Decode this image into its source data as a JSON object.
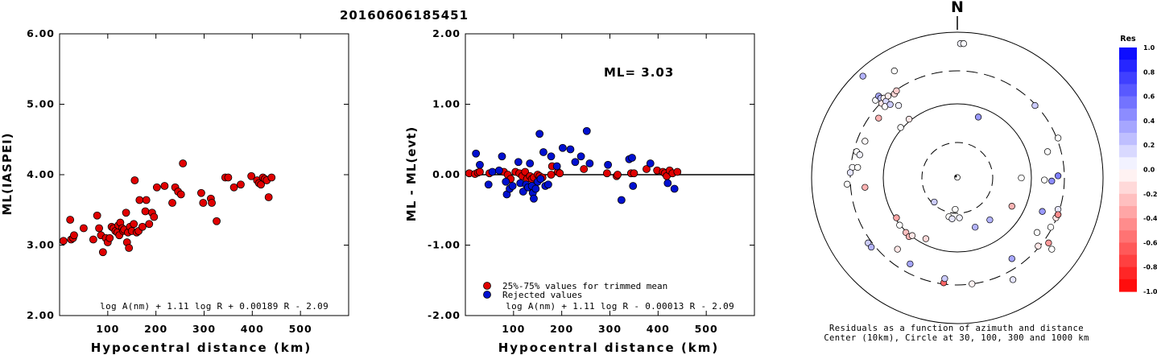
{
  "title": "20160606185451",
  "colors": {
    "red": "#e00000",
    "blue": "#0010d0",
    "axis": "#000000"
  },
  "chart_data": [
    {
      "type": "scatter",
      "name": "ml-vs-distance",
      "xlabel": "Hypocentral distance (km)",
      "ylabel": "ML(IASPEI)",
      "xlim": [
        0,
        600
      ],
      "ylim": [
        2.0,
        6.0
      ],
      "xticks": [
        "100",
        "200",
        "300",
        "400",
        "500"
      ],
      "yticks": [
        "2.00",
        "3.00",
        "4.00",
        "5.00",
        "6.00"
      ],
      "formula": "log A(nm) + 1.11 log R + 0.00189 R - 2.09",
      "points": [
        [
          8,
          3.06
        ],
        [
          22,
          3.36
        ],
        [
          24,
          3.08
        ],
        [
          28,
          3.1
        ],
        [
          30,
          3.14
        ],
        [
          50,
          3.24
        ],
        [
          70,
          3.08
        ],
        [
          78,
          3.42
        ],
        [
          82,
          3.24
        ],
        [
          86,
          3.14
        ],
        [
          90,
          2.9
        ],
        [
          96,
          3.1
        ],
        [
          100,
          3.04
        ],
        [
          104,
          3.1
        ],
        [
          108,
          3.26
        ],
        [
          112,
          3.24
        ],
        [
          116,
          3.2
        ],
        [
          120,
          3.18
        ],
        [
          122,
          3.28
        ],
        [
          124,
          3.14
        ],
        [
          126,
          3.32
        ],
        [
          130,
          3.24
        ],
        [
          132,
          3.2
        ],
        [
          134,
          3.22
        ],
        [
          138,
          3.46
        ],
        [
          140,
          3.04
        ],
        [
          142,
          3.18
        ],
        [
          144,
          2.96
        ],
        [
          146,
          3.26
        ],
        [
          150,
          3.2
        ],
        [
          154,
          3.3
        ],
        [
          156,
          3.92
        ],
        [
          160,
          3.18
        ],
        [
          164,
          3.2
        ],
        [
          166,
          3.64
        ],
        [
          172,
          3.26
        ],
        [
          178,
          3.48
        ],
        [
          180,
          3.64
        ],
        [
          186,
          3.3
        ],
        [
          192,
          3.46
        ],
        [
          196,
          3.4
        ],
        [
          202,
          3.82
        ],
        [
          218,
          3.84
        ],
        [
          234,
          3.6
        ],
        [
          240,
          3.82
        ],
        [
          246,
          3.76
        ],
        [
          252,
          3.72
        ],
        [
          256,
          4.16
        ],
        [
          294,
          3.74
        ],
        [
          298,
          3.6
        ],
        [
          314,
          3.66
        ],
        [
          316,
          3.6
        ],
        [
          326,
          3.34
        ],
        [
          344,
          3.96
        ],
        [
          350,
          3.96
        ],
        [
          362,
          3.82
        ],
        [
          376,
          3.86
        ],
        [
          398,
          3.98
        ],
        [
          410,
          3.92
        ],
        [
          414,
          3.88
        ],
        [
          418,
          3.86
        ],
        [
          422,
          3.96
        ],
        [
          426,
          3.94
        ],
        [
          430,
          3.92
        ],
        [
          434,
          3.68
        ],
        [
          440,
          3.96
        ]
      ]
    },
    {
      "type": "scatter",
      "name": "residual-vs-distance",
      "xlabel": "Hypocentral distance (km)",
      "ylabel": "ML - ML(evt)",
      "xlim": [
        0,
        600
      ],
      "ylim": [
        -2.0,
        2.0
      ],
      "xticks": [
        "100",
        "200",
        "300",
        "400",
        "500"
      ],
      "yticks": [
        "-2.00",
        "-1.00",
        "0.00",
        "1.00",
        "2.00"
      ],
      "reference_line": 0.0,
      "ml_label": "ML= 3.03",
      "formula": "log A(nm) + 1.11 log R - 0.00013 R - 2.09",
      "legend": [
        {
          "label": "25%-75% values for trimmed mean",
          "color": "red"
        },
        {
          "label": "Rejected values",
          "color": "blue"
        }
      ],
      "series": [
        {
          "name": "25%-75% values for trimmed mean",
          "color": "red",
          "points": [
            [
              8,
              0.02
            ],
            [
              20,
              0.01
            ],
            [
              26,
              0.03
            ],
            [
              30,
              0.04
            ],
            [
              50,
              0.02
            ],
            [
              80,
              0.04
            ],
            [
              88,
              0.0
            ],
            [
              94,
              -0.06
            ],
            [
              104,
              0.04
            ],
            [
              112,
              0.02
            ],
            [
              118,
              -0.02
            ],
            [
              124,
              0.04
            ],
            [
              128,
              -0.06
            ],
            [
              134,
              -0.02
            ],
            [
              138,
              -0.06
            ],
            [
              142,
              -0.04
            ],
            [
              150,
              0.0
            ],
            [
              154,
              -0.02
            ],
            [
              160,
              -0.04
            ],
            [
              178,
              0.0
            ],
            [
              180,
              0.12
            ],
            [
              192,
              0.04
            ],
            [
              196,
              0.02
            ],
            [
              246,
              0.08
            ],
            [
              294,
              0.02
            ],
            [
              314,
              -0.02
            ],
            [
              316,
              0.0
            ],
            [
              344,
              0.02
            ],
            [
              350,
              0.02
            ],
            [
              376,
              0.08
            ],
            [
              398,
              0.06
            ],
            [
              410,
              0.04
            ],
            [
              414,
              0.02
            ],
            [
              418,
              -0.02
            ],
            [
              424,
              0.06
            ],
            [
              430,
              0.02
            ],
            [
              440,
              0.04
            ]
          ]
        },
        {
          "name": "Rejected values",
          "color": "blue",
          "points": [
            [
              22,
              0.3
            ],
            [
              30,
              0.14
            ],
            [
              48,
              -0.14
            ],
            [
              56,
              0.04
            ],
            [
              70,
              0.06
            ],
            [
              76,
              0.26
            ],
            [
              84,
              -0.1
            ],
            [
              86,
              -0.28
            ],
            [
              92,
              -0.2
            ],
            [
              98,
              -0.16
            ],
            [
              110,
              0.18
            ],
            [
              114,
              -0.12
            ],
            [
              120,
              -0.24
            ],
            [
              126,
              -0.14
            ],
            [
              130,
              -0.18
            ],
            [
              134,
              0.16
            ],
            [
              138,
              -0.16
            ],
            [
              140,
              -0.26
            ],
            [
              142,
              -0.34
            ],
            [
              146,
              -0.2
            ],
            [
              150,
              -0.1
            ],
            [
              154,
              0.58
            ],
            [
              156,
              -0.06
            ],
            [
              162,
              0.32
            ],
            [
              166,
              -0.16
            ],
            [
              172,
              -0.14
            ],
            [
              178,
              0.26
            ],
            [
              190,
              0.12
            ],
            [
              202,
              0.38
            ],
            [
              218,
              0.36
            ],
            [
              228,
              0.18
            ],
            [
              240,
              0.26
            ],
            [
              252,
              0.62
            ],
            [
              258,
              0.16
            ],
            [
              296,
              0.14
            ],
            [
              324,
              -0.36
            ],
            [
              340,
              0.22
            ],
            [
              346,
              0.24
            ],
            [
              348,
              -0.16
            ],
            [
              384,
              0.16
            ],
            [
              420,
              -0.12
            ],
            [
              434,
              -0.2
            ]
          ]
        }
      ]
    },
    {
      "type": "scatter",
      "name": "azimuth-distance-residuals",
      "north_label": "N",
      "caption_lines": [
        "Residuals as a function of azimuth and distance",
        "Center (10km), Circle at 30, 100, 300 and 1000 km"
      ],
      "rings_km": [
        30,
        100,
        300,
        1000
      ],
      "colorbar": {
        "title": "Res",
        "range": [
          -1.0,
          1.0
        ],
        "ticks": [
          "1.0",
          "0.8",
          "0.6",
          "0.4",
          "0.2",
          "0.0",
          "-0.2",
          "-0.4",
          "-0.6",
          "-0.8",
          "-1.0"
        ]
      },
      "stations": [
        {
          "dx": 0.0,
          "dy": -0.005,
          "res": 0.0
        },
        {
          "dx": 0.03,
          "dy": -1.28,
          "res": 0.04
        },
        {
          "dx": 0.06,
          "dy": -1.28,
          "res": 0.02
        },
        {
          "dx": -0.9,
          "dy": -0.97,
          "res": 0.3
        },
        {
          "dx": -0.6,
          "dy": -1.02,
          "res": 0.0
        },
        {
          "dx": -0.78,
          "dy": -0.74,
          "res": 0.02
        },
        {
          "dx": -0.75,
          "dy": -0.78,
          "res": 0.35
        },
        {
          "dx": -0.73,
          "dy": -0.76,
          "res": 0.25
        },
        {
          "dx": -0.72,
          "dy": -0.71,
          "res": -0.1
        },
        {
          "dx": -0.7,
          "dy": -0.76,
          "res": -0.05
        },
        {
          "dx": -0.68,
          "dy": -0.73,
          "res": 0.15
        },
        {
          "dx": -0.69,
          "dy": -0.68,
          "res": 0.0
        },
        {
          "dx": -0.66,
          "dy": -0.78,
          "res": -0.08
        },
        {
          "dx": -0.64,
          "dy": -0.7,
          "res": 0.2
        },
        {
          "dx": -0.6,
          "dy": -0.8,
          "res": -0.15
        },
        {
          "dx": -0.58,
          "dy": -0.83,
          "res": -0.2
        },
        {
          "dx": -0.56,
          "dy": -0.69,
          "res": 0.05
        },
        {
          "dx": -0.75,
          "dy": -0.57,
          "res": -0.3
        },
        {
          "dx": -0.46,
          "dy": -0.56,
          "res": -0.1
        },
        {
          "dx": -0.54,
          "dy": -0.48,
          "res": 0.0
        },
        {
          "dx": -0.96,
          "dy": -0.25,
          "res": 0.0
        },
        {
          "dx": -0.93,
          "dy": -0.22,
          "res": 0.05
        },
        {
          "dx": -1.0,
          "dy": -0.1,
          "res": 0.02
        },
        {
          "dx": -0.95,
          "dy": -0.1,
          "res": 0.0
        },
        {
          "dx": -1.02,
          "dy": -0.05,
          "res": 0.1
        },
        {
          "dx": -0.88,
          "dy": -0.35,
          "res": -0.02
        },
        {
          "dx": -0.88,
          "dy": 0.09,
          "res": -0.3
        },
        {
          "dx": -1.05,
          "dy": 0.06,
          "res": 0.0
        },
        {
          "dx": -0.58,
          "dy": 0.38,
          "res": -0.35
        },
        {
          "dx": -0.55,
          "dy": 0.45,
          "res": 0.0
        },
        {
          "dx": -0.49,
          "dy": 0.52,
          "res": -0.25
        },
        {
          "dx": -0.46,
          "dy": 0.56,
          "res": -0.3
        },
        {
          "dx": -0.43,
          "dy": 0.55,
          "res": -0.1
        },
        {
          "dx": -0.3,
          "dy": 0.58,
          "res": -0.15
        },
        {
          "dx": -0.57,
          "dy": 0.68,
          "res": -0.1
        },
        {
          "dx": -0.85,
          "dy": 0.62,
          "res": 0.2
        },
        {
          "dx": -0.82,
          "dy": 0.66,
          "res": 0.3
        },
        {
          "dx": -0.45,
          "dy": 0.82,
          "res": 0.35
        },
        {
          "dx": -0.13,
          "dy": 1.0,
          "res": -0.6
        },
        {
          "dx": -0.12,
          "dy": 0.96,
          "res": 0.2
        },
        {
          "dx": -0.22,
          "dy": 0.23,
          "res": 0.2
        },
        {
          "dx": -0.08,
          "dy": 0.37,
          "res": 0.0
        },
        {
          "dx": -0.05,
          "dy": 0.39,
          "res": 0.1
        },
        {
          "dx": -0.02,
          "dy": 0.3,
          "res": 0.0
        },
        {
          "dx": 0.02,
          "dy": 0.38,
          "res": 0.05
        },
        {
          "dx": 0.17,
          "dy": 0.47,
          "res": 0.3
        },
        {
          "dx": 0.2,
          "dy": -0.58,
          "res": 0.4
        },
        {
          "dx": 0.14,
          "dy": 1.01,
          "res": -0.05
        },
        {
          "dx": 0.53,
          "dy": 0.97,
          "res": 0.1
        },
        {
          "dx": 0.52,
          "dy": 0.77,
          "res": 0.35
        },
        {
          "dx": 0.9,
          "dy": 0.68,
          "res": 0.0
        },
        {
          "dx": 0.87,
          "dy": 0.62,
          "res": -0.4
        },
        {
          "dx": 0.94,
          "dy": 0.38,
          "res": -0.1
        },
        {
          "dx": 0.96,
          "dy": 0.35,
          "res": 0.05
        },
        {
          "dx": 0.96,
          "dy": 0.3,
          "res": 0.1
        },
        {
          "dx": 0.96,
          "dy": 0.35,
          "res": -0.45
        },
        {
          "dx": 0.89,
          "dy": 0.47,
          "res": 0.0
        },
        {
          "dx": 0.81,
          "dy": 0.32,
          "res": 0.4
        },
        {
          "dx": 0.9,
          "dy": 0.03,
          "res": 0.45
        },
        {
          "dx": 0.83,
          "dy": 0.02,
          "res": 0.0
        },
        {
          "dx": 0.96,
          "dy": -0.02,
          "res": 0.5
        },
        {
          "dx": 0.96,
          "dy": -0.38,
          "res": 0.0
        },
        {
          "dx": 0.86,
          "dy": -0.25,
          "res": 0.0
        },
        {
          "dx": 0.74,
          "dy": -0.69,
          "res": 0.2
        },
        {
          "dx": 0.61,
          "dy": 0.0,
          "res": 0.0
        },
        {
          "dx": 0.52,
          "dy": 0.27,
          "res": -0.3
        },
        {
          "dx": 0.31,
          "dy": 0.4,
          "res": 0.3
        },
        {
          "dx": 0.76,
          "dy": 0.52,
          "res": 0.0
        },
        {
          "dx": 0.77,
          "dy": 0.65,
          "res": -0.1
        }
      ]
    }
  ]
}
